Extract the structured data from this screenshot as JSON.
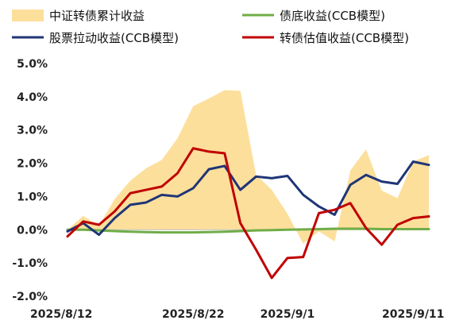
{
  "chart_data": {
    "type": "line",
    "x_ticks": [
      "2025/8/12",
      "2025/8/22",
      "2025/9/1",
      "2025/9/11"
    ],
    "y_ticks": [
      "5.0%",
      "4.0%",
      "3.0%",
      "2.0%",
      "1.0%",
      "0.0%",
      "-1.0%",
      "-2.0%"
    ],
    "ylim": [
      -2.0,
      5.0
    ],
    "y_unit": "%",
    "legend_placement": "top",
    "grid": false,
    "dates": [
      "2025/8/12",
      "2025/8/13",
      "2025/8/14",
      "2025/8/15",
      "2025/8/18",
      "2025/8/19",
      "2025/8/20",
      "2025/8/21",
      "2025/8/22",
      "2025/8/25",
      "2025/8/26",
      "2025/8/27",
      "2025/8/28",
      "2025/8/29",
      "2025/9/1",
      "2025/9/2",
      "2025/9/3",
      "2025/9/4",
      "2025/9/5",
      "2025/9/8",
      "2025/9/9",
      "2025/9/10",
      "2025/9/11",
      "2025/9/12"
    ],
    "series": [
      {
        "name": "中证转债累计收益",
        "kind": "area",
        "color": "#FDDF9C",
        "values": [
          0.0,
          0.42,
          0.12,
          0.92,
          1.48,
          1.85,
          2.1,
          2.75,
          3.72,
          3.95,
          4.2,
          4.18,
          1.65,
          1.2,
          0.48,
          -0.42,
          -0.05,
          -0.35,
          1.78,
          2.42,
          1.18,
          0.95,
          2.05,
          2.25
        ]
      },
      {
        "name": "债底收益(CCB模型)",
        "kind": "line",
        "color": "#70AD47",
        "values": [
          0.0,
          0.0,
          -0.02,
          -0.04,
          -0.06,
          -0.07,
          -0.08,
          -0.08,
          -0.08,
          -0.07,
          -0.06,
          -0.04,
          -0.02,
          -0.01,
          0.0,
          0.01,
          0.02,
          0.03,
          0.03,
          0.03,
          0.02,
          0.02,
          0.02,
          0.02
        ]
      },
      {
        "name": "股票拉动收益(CCB模型)",
        "kind": "line",
        "color": "#1F3576",
        "values": [
          -0.05,
          0.2,
          -0.15,
          0.35,
          0.75,
          0.82,
          1.05,
          1.0,
          1.25,
          1.82,
          1.92,
          1.2,
          1.6,
          1.55,
          1.62,
          1.05,
          0.7,
          0.45,
          1.35,
          1.65,
          1.45,
          1.38,
          2.05,
          1.95
        ]
      },
      {
        "name": "转债估值收益(CCB模型)",
        "kind": "line",
        "color": "#C00000",
        "values": [
          -0.2,
          0.25,
          0.15,
          0.55,
          1.1,
          1.2,
          1.3,
          1.7,
          2.45,
          2.35,
          2.3,
          0.2,
          -0.6,
          -1.45,
          -0.85,
          -0.82,
          0.5,
          0.6,
          0.8,
          0.05,
          -0.45,
          0.15,
          0.35,
          0.4
        ]
      }
    ]
  }
}
